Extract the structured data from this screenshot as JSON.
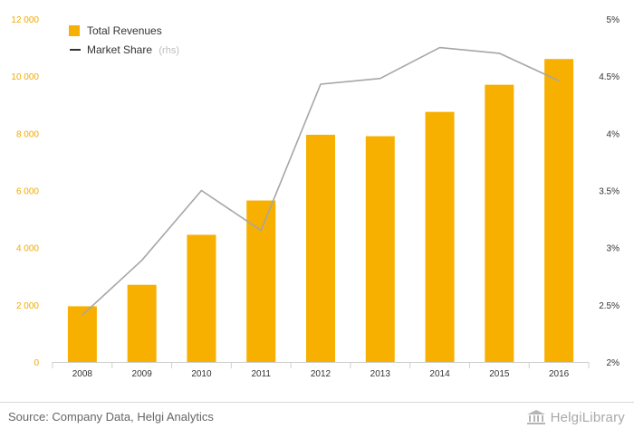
{
  "chart_data": {
    "type": "bar",
    "categories": [
      "2008",
      "2009",
      "2010",
      "2011",
      "2012",
      "2013",
      "2014",
      "2015",
      "2016"
    ],
    "series": [
      {
        "name": "Total Revenues",
        "type": "bar",
        "axis": "left",
        "color": "#f7b000",
        "values": [
          1950,
          2700,
          4450,
          5650,
          7950,
          7900,
          8750,
          9700,
          10600
        ]
      },
      {
        "name": "Market Share",
        "name_suffix": "(rhs)",
        "type": "line",
        "axis": "right",
        "color": "#a6a6a6",
        "values": [
          2.41,
          2.89,
          3.5,
          3.15,
          4.43,
          4.48,
          4.75,
          4.7,
          4.46
        ]
      }
    ],
    "y_left": {
      "ylim": [
        0,
        12000
      ],
      "ticks": [
        "0",
        "2 000",
        "4 000",
        "6 000",
        "8 000",
        "10 000",
        "12 000"
      ]
    },
    "y_right": {
      "ylim": [
        2,
        5
      ],
      "ticks": [
        "2%",
        "2.5%",
        "3%",
        "3.5%",
        "4%",
        "4.5%",
        "5%"
      ]
    },
    "legend_position": "top-left",
    "grid": false
  },
  "footer": {
    "source": "Source: Company Data, Helgi Analytics",
    "brand": "HelgiLibrary"
  }
}
